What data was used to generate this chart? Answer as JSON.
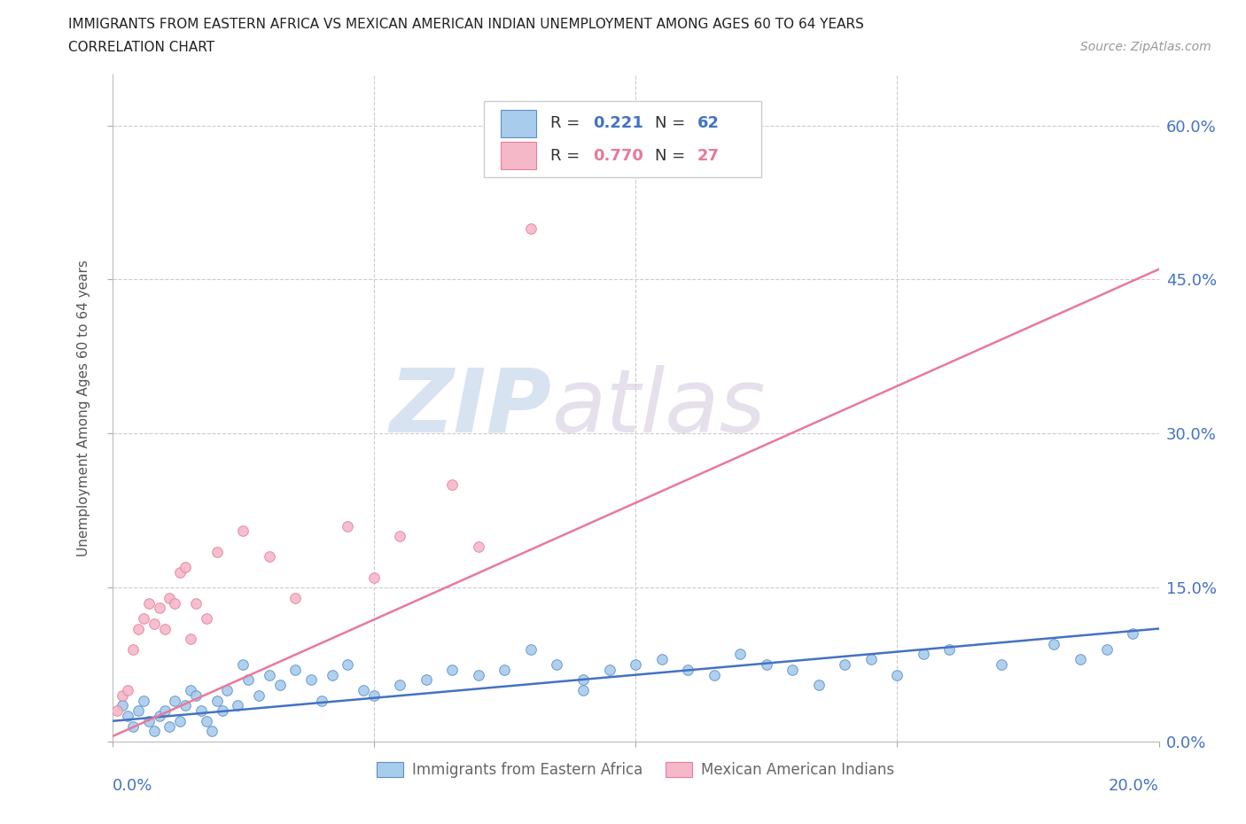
{
  "title_line1": "IMMIGRANTS FROM EASTERN AFRICA VS MEXICAN AMERICAN INDIAN UNEMPLOYMENT AMONG AGES 60 TO 64 YEARS",
  "title_line2": "CORRELATION CHART",
  "source_text": "Source: ZipAtlas.com",
  "ylabel": "Unemployment Among Ages 60 to 64 years",
  "ytick_pct": [
    0.0,
    15.0,
    30.0,
    45.0,
    60.0
  ],
  "xlim": [
    0.0,
    20.0
  ],
  "ylim": [
    0.0,
    65.0
  ],
  "blue_R": 0.221,
  "blue_N": 62,
  "pink_R": 0.77,
  "pink_N": 27,
  "blue_scatter_color": "#A8CCEC",
  "blue_edge_color": "#5B8FC9",
  "pink_scatter_color": "#F5B8C8",
  "pink_edge_color": "#E87DA0",
  "blue_line_color": "#4472C4",
  "pink_line_color": "#E8799A",
  "grid_color": "#CCCCCC",
  "watermark_zip": "ZIP",
  "watermark_atlas": "atlas",
  "legend_label_blue": "Immigrants from Eastern Africa",
  "legend_label_pink": "Mexican American Indians",
  "bg_color": "#FFFFFF",
  "blue_trend_x0": 0.0,
  "blue_trend_y0": 2.0,
  "blue_trend_x1": 20.0,
  "blue_trend_y1": 11.0,
  "pink_trend_x0": 0.0,
  "pink_trend_y0": 0.5,
  "pink_trend_x1": 20.0,
  "pink_trend_y1": 46.0,
  "blue_x": [
    0.2,
    0.3,
    0.4,
    0.5,
    0.6,
    0.7,
    0.8,
    0.9,
    1.0,
    1.1,
    1.2,
    1.3,
    1.4,
    1.5,
    1.6,
    1.7,
    1.8,
    1.9,
    2.0,
    2.1,
    2.2,
    2.4,
    2.5,
    2.6,
    2.8,
    3.0,
    3.2,
    3.5,
    3.8,
    4.0,
    4.2,
    4.5,
    4.8,
    5.0,
    5.5,
    6.0,
    6.5,
    7.0,
    7.5,
    8.0,
    8.5,
    9.0,
    9.0,
    9.5,
    10.0,
    10.5,
    11.0,
    11.5,
    12.0,
    12.5,
    13.0,
    13.5,
    14.0,
    14.5,
    15.0,
    15.5,
    16.0,
    17.0,
    18.0,
    18.5,
    19.0,
    19.5
  ],
  "blue_y": [
    3.5,
    2.5,
    1.5,
    3.0,
    4.0,
    2.0,
    1.0,
    2.5,
    3.0,
    1.5,
    4.0,
    2.0,
    3.5,
    5.0,
    4.5,
    3.0,
    2.0,
    1.0,
    4.0,
    3.0,
    5.0,
    3.5,
    7.5,
    6.0,
    4.5,
    6.5,
    5.5,
    7.0,
    6.0,
    4.0,
    6.5,
    7.5,
    5.0,
    4.5,
    5.5,
    6.0,
    7.0,
    6.5,
    7.0,
    9.0,
    7.5,
    6.0,
    5.0,
    7.0,
    7.5,
    8.0,
    7.0,
    6.5,
    8.5,
    7.5,
    7.0,
    5.5,
    7.5,
    8.0,
    6.5,
    8.5,
    9.0,
    7.5,
    9.5,
    8.0,
    9.0,
    10.5
  ],
  "pink_x": [
    0.1,
    0.2,
    0.3,
    0.4,
    0.5,
    0.6,
    0.7,
    0.8,
    0.9,
    1.0,
    1.1,
    1.2,
    1.3,
    1.4,
    1.5,
    1.6,
    1.8,
    2.0,
    2.5,
    3.0,
    3.5,
    4.5,
    5.0,
    5.5,
    6.5,
    7.0,
    8.0
  ],
  "pink_y": [
    3.0,
    4.5,
    5.0,
    9.0,
    11.0,
    12.0,
    13.5,
    11.5,
    13.0,
    11.0,
    14.0,
    13.5,
    16.5,
    17.0,
    10.0,
    13.5,
    12.0,
    18.5,
    20.5,
    18.0,
    14.0,
    21.0,
    16.0,
    20.0,
    25.0,
    19.0,
    50.0
  ]
}
